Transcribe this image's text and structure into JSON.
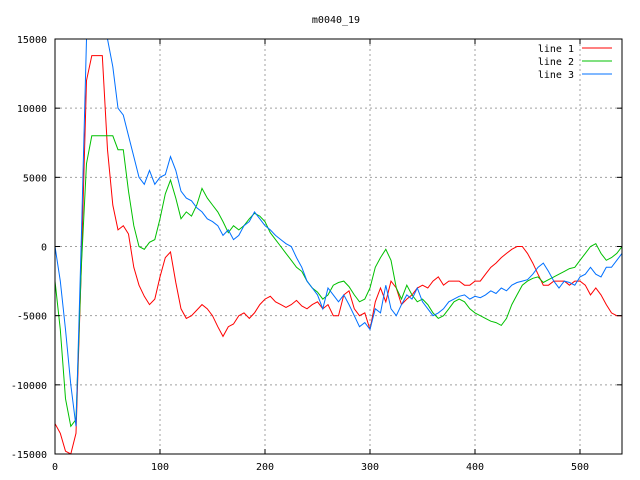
{
  "chart_data": {
    "type": "line",
    "title": "m0040_19",
    "xlabel": "",
    "ylabel": "",
    "xlim": [
      0,
      540
    ],
    "ylim": [
      -15000,
      15000
    ],
    "xticks": [
      0,
      100,
      200,
      300,
      400,
      500
    ],
    "yticks": [
      -15000,
      -10000,
      -5000,
      0,
      5000,
      10000,
      15000
    ],
    "grid": true,
    "legend_position": "top-right",
    "series": [
      {
        "name": "line 1",
        "color": "#ff0000",
        "x": [
          0,
          5,
          10,
          15,
          20,
          25,
          30,
          35,
          40,
          45,
          50,
          55,
          60,
          65,
          70,
          75,
          80,
          85,
          90,
          95,
          100,
          105,
          110,
          115,
          120,
          125,
          130,
          135,
          140,
          145,
          150,
          155,
          160,
          165,
          170,
          175,
          180,
          185,
          190,
          195,
          200,
          205,
          210,
          215,
          220,
          225,
          230,
          235,
          240,
          245,
          250,
          255,
          260,
          265,
          270,
          275,
          280,
          285,
          290,
          295,
          300,
          305,
          310,
          315,
          320,
          325,
          330,
          335,
          340,
          345,
          350,
          355,
          360,
          365,
          370,
          375,
          380,
          385,
          390,
          395,
          400,
          405,
          410,
          415,
          420,
          425,
          430,
          435,
          440,
          445,
          450,
          455,
          460,
          465,
          470,
          475,
          480,
          485,
          490,
          495,
          500,
          505,
          510,
          515,
          520,
          525,
          530,
          535,
          540
        ],
        "values": [
          -12800,
          -13500,
          -14800,
          -15000,
          -13500,
          -1500,
          12000,
          13800,
          13800,
          13800,
          7000,
          3000,
          1200,
          1500,
          900,
          -1500,
          -2800,
          -3600,
          -4200,
          -3800,
          -2200,
          -800,
          -400,
          -2600,
          -4500,
          -5200,
          -5000,
          -4600,
          -4200,
          -4500,
          -5000,
          -5800,
          -6500,
          -5800,
          -5600,
          -5000,
          -4800,
          -5200,
          -4800,
          -4200,
          -3800,
          -3600,
          -4000,
          -4200,
          -4400,
          -4200,
          -3900,
          -4300,
          -4500,
          -4200,
          -4000,
          -4500,
          -4200,
          -5000,
          -5000,
          -3500,
          -3200,
          -4500,
          -5000,
          -4800,
          -6000,
          -4000,
          -3000,
          -4000,
          -2500,
          -3000,
          -4200,
          -3800,
          -3500,
          -3000,
          -2800,
          -3000,
          -2500,
          -2200,
          -2800,
          -2500,
          -2500,
          -2500,
          -2800,
          -2800,
          -2500,
          -2500,
          -2000,
          -1500,
          -1200,
          -800,
          -500,
          -200,
          0,
          0,
          -500,
          -1200,
          -2000,
          -2800,
          -2800,
          -2500,
          -2500,
          -2500,
          -2800,
          -2500,
          -2500,
          -2800,
          -3500,
          -3000,
          -3500,
          -4200,
          -4800,
          -5000,
          -5000
        ]
      },
      {
        "name": "line 2",
        "color": "#00c000",
        "x": [
          0,
          5,
          10,
          15,
          20,
          25,
          30,
          35,
          40,
          45,
          50,
          55,
          60,
          65,
          70,
          75,
          80,
          85,
          90,
          95,
          100,
          105,
          110,
          115,
          120,
          125,
          130,
          135,
          140,
          145,
          150,
          155,
          160,
          165,
          170,
          175,
          180,
          185,
          190,
          195,
          200,
          205,
          210,
          215,
          220,
          225,
          230,
          235,
          240,
          245,
          250,
          255,
          260,
          265,
          270,
          275,
          280,
          285,
          290,
          295,
          300,
          305,
          310,
          315,
          320,
          325,
          330,
          335,
          340,
          345,
          350,
          355,
          360,
          365,
          370,
          375,
          380,
          385,
          390,
          395,
          400,
          405,
          410,
          415,
          420,
          425,
          430,
          435,
          440,
          445,
          450,
          455,
          460,
          465,
          470,
          475,
          480,
          485,
          490,
          495,
          500,
          505,
          510,
          515,
          520,
          525,
          530,
          535,
          540
        ],
        "values": [
          -2500,
          -6000,
          -11000,
          -13000,
          -12500,
          -1500,
          6000,
          8000,
          8000,
          8000,
          8000,
          8000,
          7000,
          7000,
          4000,
          1500,
          0,
          -200,
          300,
          500,
          2000,
          3800,
          4800,
          3500,
          2000,
          2500,
          2200,
          3000,
          4200,
          3500,
          3000,
          2500,
          1800,
          1000,
          1500,
          1200,
          1500,
          2000,
          2400,
          2200,
          1800,
          1000,
          500,
          0,
          -500,
          -1000,
          -1500,
          -1800,
          -2500,
          -3000,
          -3300,
          -3800,
          -3500,
          -2800,
          -2600,
          -2500,
          -2900,
          -3500,
          -4000,
          -3800,
          -3000,
          -1500,
          -800,
          -200,
          -1000,
          -3000,
          -3800,
          -2800,
          -3500,
          -4000,
          -3800,
          -4200,
          -4800,
          -5200,
          -5000,
          -4500,
          -4000,
          -3800,
          -4000,
          -4500,
          -4800,
          -5000,
          -5200,
          -5400,
          -5500,
          -5700,
          -5200,
          -4200,
          -3500,
          -2800,
          -2500,
          -2300,
          -2200,
          -2600,
          -2400,
          -2200,
          -2000,
          -1800,
          -1600,
          -1500,
          -1000,
          -500,
          0,
          200,
          -500,
          -1000,
          -800,
          -500,
          0
        ]
      },
      {
        "name": "line 3",
        "color": "#0070ff",
        "x": [
          0,
          5,
          10,
          15,
          20,
          25,
          30,
          35,
          40,
          45,
          50,
          55,
          60,
          65,
          70,
          75,
          80,
          85,
          90,
          95,
          100,
          105,
          110,
          115,
          120,
          125,
          130,
          135,
          140,
          145,
          150,
          155,
          160,
          165,
          170,
          175,
          180,
          185,
          190,
          195,
          200,
          205,
          210,
          215,
          220,
          225,
          230,
          235,
          240,
          245,
          250,
          255,
          260,
          265,
          270,
          275,
          280,
          285,
          290,
          295,
          300,
          305,
          310,
          315,
          320,
          325,
          330,
          335,
          340,
          345,
          350,
          355,
          360,
          365,
          370,
          375,
          380,
          385,
          390,
          395,
          400,
          405,
          410,
          415,
          420,
          425,
          430,
          435,
          440,
          445,
          450,
          455,
          460,
          465,
          470,
          475,
          480,
          485,
          490,
          495,
          500,
          505,
          510,
          515,
          520,
          525,
          530,
          535,
          540
        ],
        "values": [
          0,
          -2500,
          -6000,
          -10000,
          -13000,
          500,
          15000,
          15000,
          15000,
          15000,
          15000,
          13000,
          10000,
          9500,
          8000,
          6500,
          5000,
          4500,
          5500,
          4500,
          5000,
          5200,
          6500,
          5500,
          4000,
          3500,
          3300,
          2800,
          2500,
          2000,
          1800,
          1500,
          800,
          1200,
          500,
          800,
          1500,
          1800,
          2500,
          2000,
          1500,
          1200,
          800,
          500,
          200,
          0,
          -800,
          -1500,
          -2500,
          -3000,
          -3500,
          -4500,
          -3000,
          -3500,
          -4000,
          -3500,
          -4200,
          -5000,
          -5800,
          -5500,
          -6000,
          -4500,
          -4800,
          -2800,
          -4500,
          -5000,
          -4200,
          -3500,
          -3800,
          -3000,
          -4000,
          -4500,
          -5000,
          -4800,
          -4500,
          -4000,
          -3800,
          -3600,
          -3500,
          -3800,
          -3600,
          -3700,
          -3500,
          -3200,
          -3400,
          -3000,
          -3200,
          -2800,
          -2600,
          -2500,
          -2400,
          -2000,
          -1500,
          -1200,
          -1800,
          -2500,
          -3000,
          -2500,
          -2600,
          -2800,
          -2200,
          -2000,
          -1500,
          -2000,
          -2200,
          -1500,
          -1500,
          -1000,
          -500
        ]
      }
    ]
  }
}
